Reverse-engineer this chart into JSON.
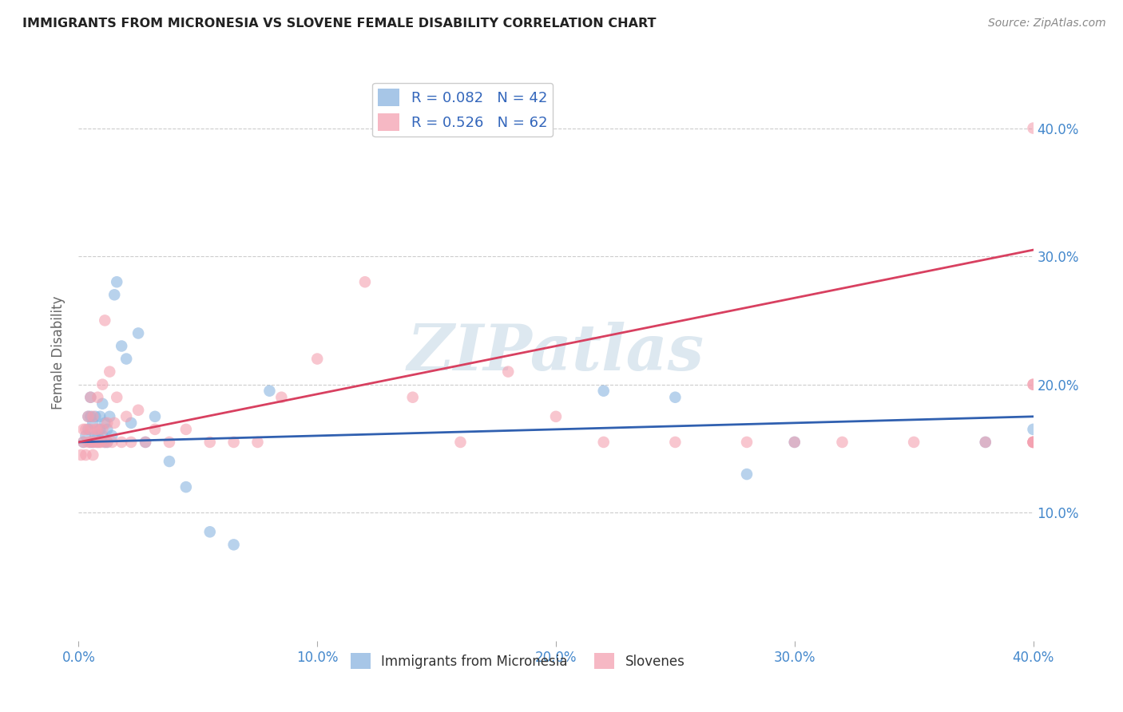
{
  "title": "IMMIGRANTS FROM MICRONESIA VS SLOVENE FEMALE DISABILITY CORRELATION CHART",
  "source": "Source: ZipAtlas.com",
  "ylabel": "Female Disability",
  "xlim": [
    0.0,
    0.4
  ],
  "ylim": [
    0.0,
    0.45
  ],
  "yticks": [
    0.1,
    0.2,
    0.3,
    0.4
  ],
  "xticks": [
    0.0,
    0.1,
    0.2,
    0.3,
    0.4
  ],
  "ytick_labels": [
    "10.0%",
    "20.0%",
    "30.0%",
    "40.0%"
  ],
  "xtick_labels": [
    "0.0%",
    "10.0%",
    "20.0%",
    "30.0%",
    "40.0%"
  ],
  "blue_label": "Immigrants from Micronesia",
  "pink_label": "Slovenes",
  "blue_R": 0.082,
  "blue_N": 42,
  "pink_R": 0.526,
  "pink_N": 62,
  "blue_color": "#8ab4e0",
  "pink_color": "#f4a0b0",
  "blue_line_color": "#3060b0",
  "pink_line_color": "#d84060",
  "watermark": "ZIPatlas",
  "watermark_color": "#dde8f0",
  "background_color": "#ffffff",
  "grid_color": "#cccccc",
  "blue_x": [
    0.002,
    0.003,
    0.004,
    0.004,
    0.005,
    0.005,
    0.005,
    0.006,
    0.006,
    0.007,
    0.007,
    0.008,
    0.008,
    0.009,
    0.009,
    0.01,
    0.01,
    0.011,
    0.011,
    0.012,
    0.012,
    0.013,
    0.014,
    0.015,
    0.016,
    0.018,
    0.02,
    0.022,
    0.025,
    0.028,
    0.032,
    0.038,
    0.045,
    0.055,
    0.065,
    0.08,
    0.22,
    0.25,
    0.28,
    0.3,
    0.38,
    0.4
  ],
  "blue_y": [
    0.155,
    0.16,
    0.165,
    0.175,
    0.155,
    0.175,
    0.19,
    0.17,
    0.155,
    0.16,
    0.175,
    0.16,
    0.155,
    0.165,
    0.175,
    0.16,
    0.185,
    0.155,
    0.17,
    0.165,
    0.155,
    0.175,
    0.16,
    0.27,
    0.28,
    0.23,
    0.22,
    0.17,
    0.24,
    0.155,
    0.175,
    0.14,
    0.12,
    0.085,
    0.075,
    0.195,
    0.195,
    0.19,
    0.13,
    0.155,
    0.155,
    0.165
  ],
  "pink_x": [
    0.001,
    0.002,
    0.002,
    0.003,
    0.003,
    0.004,
    0.004,
    0.005,
    0.005,
    0.005,
    0.006,
    0.006,
    0.006,
    0.007,
    0.007,
    0.008,
    0.008,
    0.008,
    0.009,
    0.009,
    0.01,
    0.01,
    0.011,
    0.011,
    0.012,
    0.012,
    0.013,
    0.014,
    0.015,
    0.016,
    0.018,
    0.02,
    0.022,
    0.025,
    0.028,
    0.032,
    0.038,
    0.045,
    0.055,
    0.065,
    0.075,
    0.085,
    0.1,
    0.12,
    0.14,
    0.16,
    0.18,
    0.2,
    0.22,
    0.25,
    0.28,
    0.3,
    0.32,
    0.35,
    0.38,
    0.4,
    0.4,
    0.4,
    0.4,
    0.4,
    0.4,
    0.4
  ],
  "pink_y": [
    0.145,
    0.155,
    0.165,
    0.145,
    0.165,
    0.155,
    0.175,
    0.155,
    0.165,
    0.19,
    0.145,
    0.155,
    0.175,
    0.155,
    0.165,
    0.155,
    0.165,
    0.19,
    0.155,
    0.155,
    0.165,
    0.2,
    0.155,
    0.25,
    0.17,
    0.155,
    0.21,
    0.155,
    0.17,
    0.19,
    0.155,
    0.175,
    0.155,
    0.18,
    0.155,
    0.165,
    0.155,
    0.165,
    0.155,
    0.155,
    0.155,
    0.19,
    0.22,
    0.28,
    0.19,
    0.155,
    0.21,
    0.175,
    0.155,
    0.155,
    0.155,
    0.155,
    0.155,
    0.155,
    0.155,
    0.155,
    0.155,
    0.155,
    0.155,
    0.2,
    0.2,
    0.4
  ],
  "blue_line_x0": 0.0,
  "blue_line_y0": 0.155,
  "blue_line_x1": 0.4,
  "blue_line_y1": 0.175,
  "pink_line_x0": 0.0,
  "pink_line_y0": 0.155,
  "pink_line_x1": 0.4,
  "pink_line_y1": 0.305
}
